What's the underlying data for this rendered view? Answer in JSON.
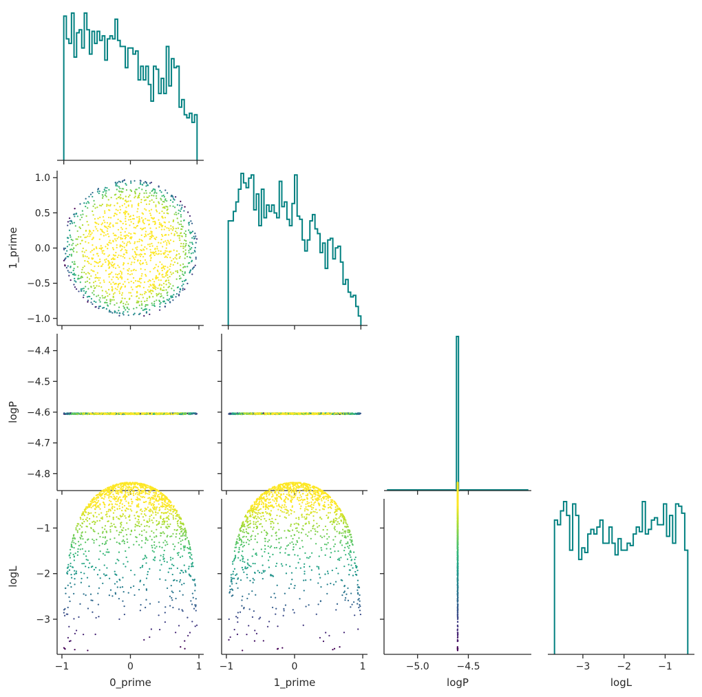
{
  "figure": {
    "type": "corner-plot",
    "variables": [
      "0_prime",
      "1_prime",
      "logP",
      "logL"
    ],
    "hist_color": "#008080",
    "colormap": "viridis"
  },
  "chart_data": [
    {
      "id": "hist_0_prime",
      "type": "histogram",
      "row": 0,
      "col": 0,
      "bin_start": -1.0,
      "bin_end": 1.0,
      "counts": [
        95,
        80,
        77,
        97,
        68,
        84,
        86,
        74,
        97,
        86,
        70,
        85,
        77,
        85,
        79,
        82,
        66,
        80,
        82,
        80,
        93,
        79,
        75,
        75,
        61,
        74,
        74,
        70,
        72,
        53,
        62,
        53,
        62,
        50,
        39,
        62,
        60,
        44,
        54,
        44,
        75,
        49,
        67,
        61,
        62,
        35,
        40,
        30,
        28,
        31,
        25,
        30
      ],
      "xticks": [
        -1,
        0,
        1
      ],
      "xticklabels": [
        "",
        "",
        ""
      ],
      "xlabel": "",
      "ylabel": ""
    },
    {
      "id": "scatter_1_prime_vs_0_prime",
      "type": "scatter",
      "row": 1,
      "col": 0,
      "x_var": "0_prime",
      "y_var": "1_prime",
      "color_by": "logL",
      "xlim": [
        -1.07,
        1.07
      ],
      "ylim": [
        -1.1,
        1.1
      ],
      "xticks": [
        -1,
        0,
        1
      ],
      "xticklabels": [
        "",
        "",
        ""
      ],
      "yticks": [
        1.0,
        0.5,
        0.0,
        -0.5,
        -1.0
      ],
      "yticklabels": [
        "1.0",
        "0.5",
        "0.0",
        "−0.5",
        "−1.0"
      ],
      "xlabel": "",
      "ylabel": "1_prime"
    },
    {
      "id": "hist_1_prime",
      "type": "histogram",
      "row": 1,
      "col": 1,
      "bin_start": -1.0,
      "bin_end": 1.0,
      "counts": [
        66,
        66,
        72,
        78,
        86,
        96,
        90,
        87,
        93,
        95,
        73,
        83,
        63,
        86,
        68,
        76,
        72,
        76,
        71,
        68,
        91,
        75,
        78,
        67,
        63,
        77,
        95,
        69,
        67,
        54,
        47,
        54,
        66,
        70,
        61,
        58,
        46,
        52,
        36,
        54,
        55,
        42,
        49,
        50,
        40,
        26,
        29,
        21,
        18,
        19,
        12,
        6
      ],
      "xticks": [
        -1,
        0,
        1
      ],
      "xticklabels": [
        "",
        "",
        ""
      ],
      "xlabel": "",
      "ylabel": ""
    },
    {
      "id": "scatter_logP_vs_0_prime",
      "type": "scatter",
      "row": 2,
      "col": 0,
      "x_var": "0_prime",
      "y_var": "logP",
      "color_by": "logL",
      "xlim": [
        -1.07,
        1.07
      ],
      "ylim": [
        -4.855,
        -4.345
      ],
      "xticks": [
        -1,
        0,
        1
      ],
      "xticklabels": [
        "",
        "",
        ""
      ],
      "yticks": [
        -4.4,
        -4.5,
        -4.6,
        -4.7,
        -4.8
      ],
      "yticklabels": [
        "−4.4",
        "−4.5",
        "−4.6",
        "−4.7",
        "−4.8"
      ],
      "xlabel": "",
      "ylabel": "logP"
    },
    {
      "id": "scatter_logP_vs_1_prime",
      "type": "scatter",
      "row": 2,
      "col": 1,
      "x_var": "1_prime",
      "y_var": "logP",
      "color_by": "logL",
      "xlim": [
        -1.07,
        1.07
      ],
      "ylim": [
        -4.855,
        -4.345
      ],
      "xticks": [
        -1,
        0,
        1
      ],
      "xticklabels": [
        "",
        "",
        ""
      ],
      "yticks": [
        -4.4,
        -4.5,
        -4.6,
        -4.7,
        -4.8
      ],
      "yticklabels": [
        "",
        "",
        "",
        "",
        ""
      ],
      "xlabel": "",
      "ylabel": ""
    },
    {
      "id": "hist_logP",
      "type": "histogram",
      "row": 2,
      "col": 2,
      "xlim": [
        -5.33,
        -3.88
      ],
      "bin_edges": [
        -4.627,
        -4.617,
        -4.607,
        -4.597,
        -4.587
      ],
      "counts": [
        0,
        1000,
        1000,
        0
      ],
      "xticks": [
        -5.0,
        -4.5
      ],
      "xticklabels": [
        "",
        ""
      ],
      "xlabel": "",
      "ylabel": ""
    },
    {
      "id": "scatter_logL_vs_0_prime",
      "type": "scatter",
      "row": 3,
      "col": 0,
      "x_var": "0_prime",
      "y_var": "logL",
      "color_by": "logL",
      "xlim": [
        -1.07,
        1.07
      ],
      "ylim": [
        -3.77,
        -0.36
      ],
      "xticks": [
        -1,
        0,
        1
      ],
      "xticklabels": [
        "−1",
        "0",
        "1"
      ],
      "yticks": [
        -1,
        -2,
        -3
      ],
      "yticklabels": [
        "−1",
        "−2",
        "−3"
      ],
      "xlabel": "0_prime",
      "ylabel": "logL"
    },
    {
      "id": "scatter_logL_vs_1_prime",
      "type": "scatter",
      "row": 3,
      "col": 1,
      "x_var": "1_prime",
      "y_var": "logL",
      "color_by": "logL",
      "xlim": [
        -1.07,
        1.07
      ],
      "ylim": [
        -3.77,
        -0.36
      ],
      "xticks": [
        -1,
        0,
        1
      ],
      "xticklabels": [
        "−1",
        "0",
        "1"
      ],
      "yticks": [
        -1,
        -2,
        -3
      ],
      "yticklabels": [
        "",
        "",
        ""
      ],
      "xlabel": "1_prime",
      "ylabel": ""
    },
    {
      "id": "scatter_logL_vs_logP",
      "type": "scatter",
      "row": 3,
      "col": 2,
      "x_var": "logP",
      "y_var": "logL",
      "color_by": "logL",
      "xlim": [
        -5.33,
        -3.88
      ],
      "ylim": [
        -3.77,
        -0.36
      ],
      "xticks": [
        -5.0,
        -4.5
      ],
      "xticklabels": [
        "−5.0",
        "−4.5"
      ],
      "yticks": [
        -1,
        -2,
        -3
      ],
      "yticklabels": [
        "",
        "",
        ""
      ],
      "xlabel": "logP",
      "ylabel": ""
    },
    {
      "id": "hist_logL",
      "type": "histogram",
      "row": 3,
      "col": 3,
      "bin_start": -3.69,
      "bin_end": -0.45,
      "counts": [
        58,
        56,
        62,
        66,
        60,
        45,
        65,
        60,
        41,
        46,
        44,
        52,
        54,
        52,
        55,
        58,
        48,
        48,
        55,
        48,
        43,
        50,
        45,
        45,
        48,
        47,
        52,
        55,
        53,
        66,
        52,
        54,
        58,
        59,
        56,
        56,
        65,
        51,
        60,
        48,
        65,
        64,
        61,
        45
      ],
      "xticks": [
        -3,
        -2,
        -1
      ],
      "xticklabels": [
        "−3",
        "−2",
        "−1"
      ],
      "xlabel": "logL",
      "ylabel": ""
    }
  ]
}
